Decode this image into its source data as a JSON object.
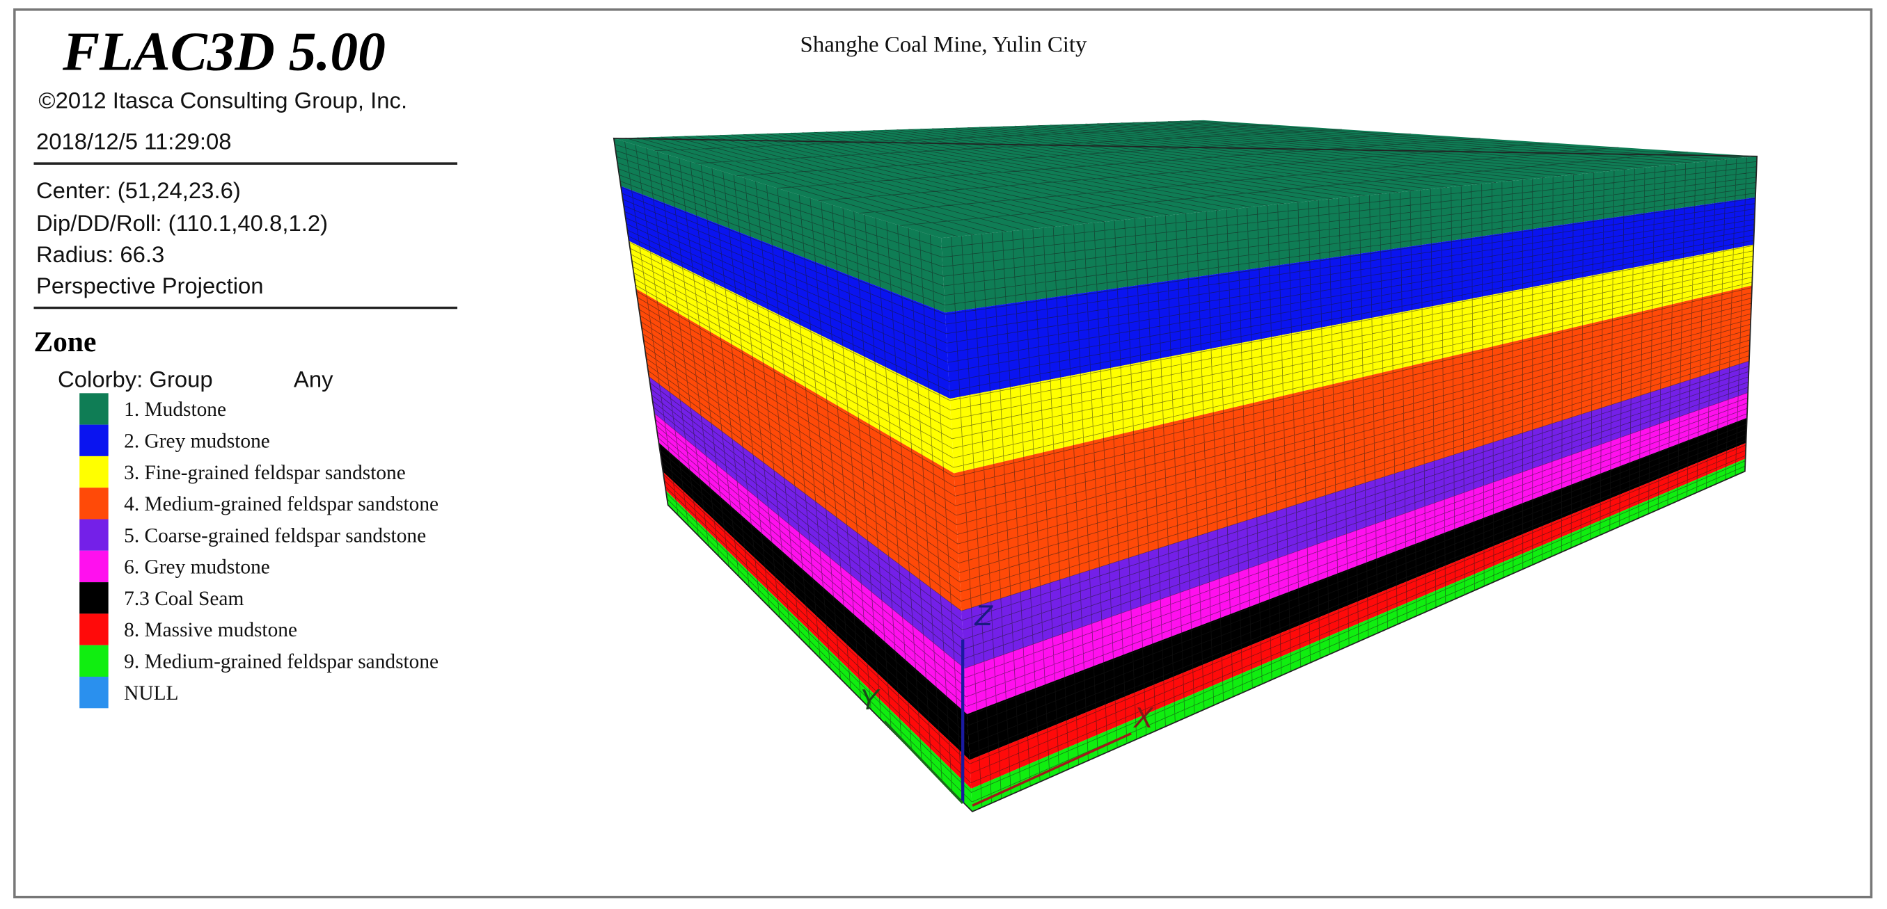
{
  "header": {
    "title": "FLAC3D 5.00",
    "copyright": "©2012 Itasca Consulting Group, Inc.",
    "timestamp": "2018/12/5 11:29:08"
  },
  "view": {
    "center": "Center: (51,24,23.6)",
    "dip": "Dip/DD/Roll: (110.1,40.8,1.2)",
    "radius": "Radius: 66.3",
    "projection": "Perspective Projection"
  },
  "zone": {
    "title": "Zone",
    "colorby": "Colorby: Group",
    "scope": "Any",
    "legend": [
      {
        "label": "1. Mudstone",
        "color": "#0f7d55"
      },
      {
        "label": "2. Grey mudstone",
        "color": "#0a14f0"
      },
      {
        "label": "3. Fine-grained feldspar sandstone",
        "color": "#ffff00"
      },
      {
        "label": "4. Medium-grained feldspar sandstone",
        "color": "#ff4a08"
      },
      {
        "label": "5. Coarse-grained feldspar sandstone",
        "color": "#7420e8"
      },
      {
        "label": "6. Grey mudstone",
        "color": "#ff10ee"
      },
      {
        "label": "7.3 Coal Seam",
        "color": "#000000"
      },
      {
        "label": "8. Massive mudstone",
        "color": "#ff0a0a"
      },
      {
        "label": "9. Medium-grained feldspar sandstone",
        "color": "#10ee10"
      },
      {
        "label": "NULL",
        "color": "#2a90ee"
      }
    ]
  },
  "plot": {
    "title": "Shanghe Coal Mine, Yulin City",
    "axes": {
      "z": "Z",
      "y": "Y",
      "x": "X"
    }
  }
}
